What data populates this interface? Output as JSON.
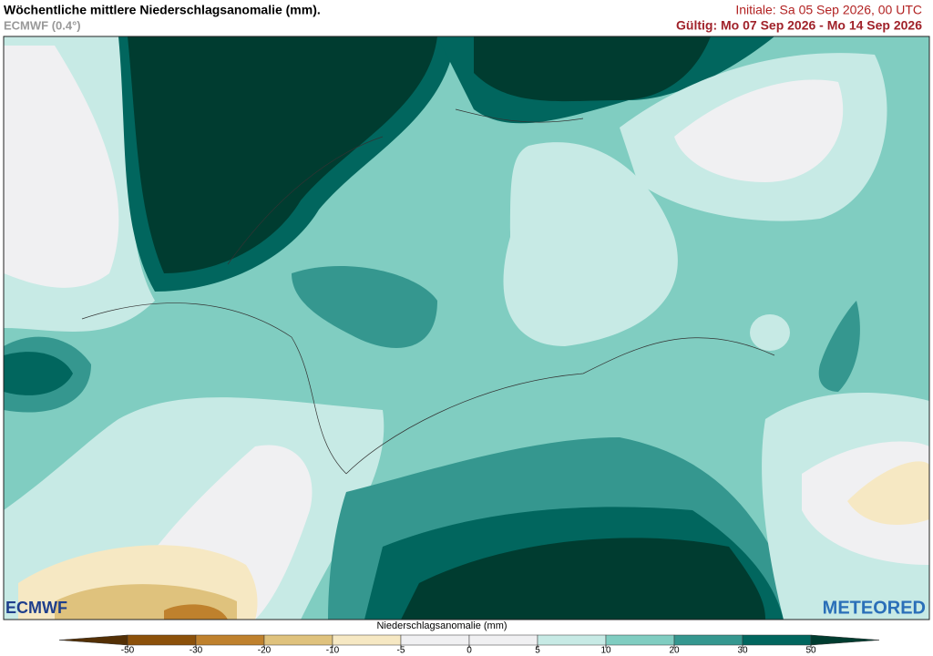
{
  "header": {
    "title": "Wöchentliche mittlere Niederschlagsanomalie (mm).",
    "model": "ECMWF (0.4°)",
    "initial": "Initiale:  Sa 05 Sep 2026, 00 UTC",
    "valid": "Gültig: Mo 07 Sep 2026 - Mo 14 Sep 2026"
  },
  "logos": {
    "left": "ECMWF",
    "right": "METEORED"
  },
  "colorbar": {
    "label": "Niederschlagsanomalie (mm)",
    "ticks": [
      -50,
      -30,
      -20,
      -10,
      -5,
      0,
      5,
      10,
      20,
      30,
      50
    ],
    "colors": [
      "#543005",
      "#8c510a",
      "#bf812d",
      "#dfc27d",
      "#f6e8c3",
      "#f0f0f2",
      "#f0f0f2",
      "#c7eae5",
      "#80cdc1",
      "#35978f",
      "#01665e",
      "#003c30"
    ]
  }
}
